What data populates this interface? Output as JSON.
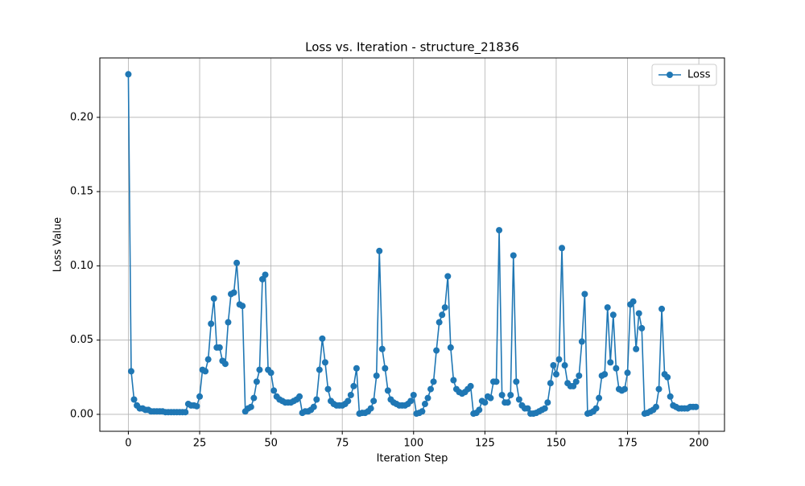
{
  "chart_data": {
    "type": "line",
    "title": "Loss vs. Iteration - structure_21836",
    "xlabel": "Iteration Step",
    "ylabel": "Loss Value",
    "x": [
      0,
      1,
      2,
      3,
      4,
      5,
      6,
      7,
      8,
      9,
      10,
      11,
      12,
      13,
      14,
      15,
      16,
      17,
      18,
      19,
      20,
      21,
      22,
      23,
      24,
      25,
      26,
      27,
      28,
      29,
      30,
      31,
      32,
      33,
      34,
      35,
      36,
      37,
      38,
      39,
      40,
      41,
      42,
      43,
      44,
      45,
      46,
      47,
      48,
      49,
      50,
      51,
      52,
      53,
      54,
      55,
      56,
      57,
      58,
      59,
      60,
      61,
      62,
      63,
      64,
      65,
      66,
      67,
      68,
      69,
      70,
      71,
      72,
      73,
      74,
      75,
      76,
      77,
      78,
      79,
      80,
      81,
      82,
      83,
      84,
      85,
      86,
      87,
      88,
      89,
      90,
      91,
      92,
      93,
      94,
      95,
      96,
      97,
      98,
      99,
      100,
      101,
      102,
      103,
      104,
      105,
      106,
      107,
      108,
      109,
      110,
      111,
      112,
      113,
      114,
      115,
      116,
      117,
      118,
      119,
      120,
      121,
      122,
      123,
      124,
      125,
      126,
      127,
      128,
      129,
      130,
      131,
      132,
      133,
      134,
      135,
      136,
      137,
      138,
      139,
      140,
      141,
      142,
      143,
      144,
      145,
      146,
      147,
      148,
      149,
      150,
      151,
      152,
      153,
      154,
      155,
      156,
      157,
      158,
      159,
      160,
      161,
      162,
      163,
      164,
      165,
      166,
      167,
      168,
      169,
      170,
      171,
      172,
      173,
      174,
      175,
      176,
      177,
      178,
      179,
      180,
      181,
      182,
      183,
      184,
      185,
      186,
      187,
      188,
      189,
      190,
      191,
      192,
      193,
      194,
      195,
      196,
      197,
      198,
      199
    ],
    "series": [
      {
        "name": "Loss",
        "color": "#1f77b4",
        "values": [
          0.229,
          0.029,
          0.01,
          0.006,
          0.004,
          0.004,
          0.003,
          0.003,
          0.002,
          0.002,
          0.002,
          0.002,
          0.002,
          0.0015,
          0.0015,
          0.0015,
          0.0015,
          0.0015,
          0.0015,
          0.0015,
          0.0015,
          0.007,
          0.006,
          0.006,
          0.0055,
          0.012,
          0.03,
          0.029,
          0.037,
          0.061,
          0.078,
          0.045,
          0.045,
          0.036,
          0.034,
          0.062,
          0.081,
          0.082,
          0.102,
          0.074,
          0.073,
          0.002,
          0.004,
          0.005,
          0.011,
          0.022,
          0.03,
          0.091,
          0.094,
          0.03,
          0.028,
          0.016,
          0.012,
          0.01,
          0.009,
          0.008,
          0.008,
          0.008,
          0.009,
          0.01,
          0.012,
          0.001,
          0.002,
          0.002,
          0.003,
          0.005,
          0.01,
          0.03,
          0.051,
          0.035,
          0.017,
          0.009,
          0.007,
          0.006,
          0.006,
          0.006,
          0.007,
          0.009,
          0.013,
          0.019,
          0.031,
          0.0005,
          0.001,
          0.001,
          0.002,
          0.004,
          0.009,
          0.026,
          0.11,
          0.044,
          0.031,
          0.016,
          0.01,
          0.008,
          0.007,
          0.006,
          0.006,
          0.006,
          0.007,
          0.009,
          0.013,
          0.0005,
          0.001,
          0.002,
          0.007,
          0.011,
          0.017,
          0.022,
          0.043,
          0.062,
          0.067,
          0.072,
          0.093,
          0.045,
          0.023,
          0.017,
          0.015,
          0.014,
          0.015,
          0.017,
          0.019,
          0.0005,
          0.001,
          0.003,
          0.009,
          0.008,
          0.012,
          0.011,
          0.022,
          0.022,
          0.124,
          0.013,
          0.008,
          0.008,
          0.013,
          0.107,
          0.022,
          0.01,
          0.006,
          0.004,
          0.004,
          0.0005,
          0.0005,
          0.001,
          0.002,
          0.003,
          0.004,
          0.008,
          0.021,
          0.033,
          0.027,
          0.037,
          0.112,
          0.033,
          0.021,
          0.019,
          0.019,
          0.022,
          0.026,
          0.049,
          0.081,
          0.0005,
          0.001,
          0.002,
          0.004,
          0.011,
          0.026,
          0.027,
          0.072,
          0.035,
          0.067,
          0.031,
          0.017,
          0.016,
          0.017,
          0.028,
          0.074,
          0.076,
          0.044,
          0.068,
          0.058,
          0.0005,
          0.001,
          0.002,
          0.003,
          0.005,
          0.017,
          0.071,
          0.027,
          0.025,
          0.012,
          0.006,
          0.005,
          0.004,
          0.004,
          0.004,
          0.004,
          0.005,
          0.005,
          0.005
        ]
      }
    ],
    "xlim": [
      -10,
      209
    ],
    "ylim": [
      -0.0114,
      0.24
    ],
    "xticks": [
      0,
      25,
      50,
      75,
      100,
      125,
      150,
      175,
      200
    ],
    "yticks": [
      {
        "value": 0,
        "label": "0.00"
      },
      {
        "value": 0.05,
        "label": "0.05"
      },
      {
        "value": 0.1,
        "label": "0.10"
      },
      {
        "value": 0.15,
        "label": "0.15"
      },
      {
        "value": 0.2,
        "label": "0.20"
      }
    ],
    "grid": true,
    "legend": "upper right"
  }
}
